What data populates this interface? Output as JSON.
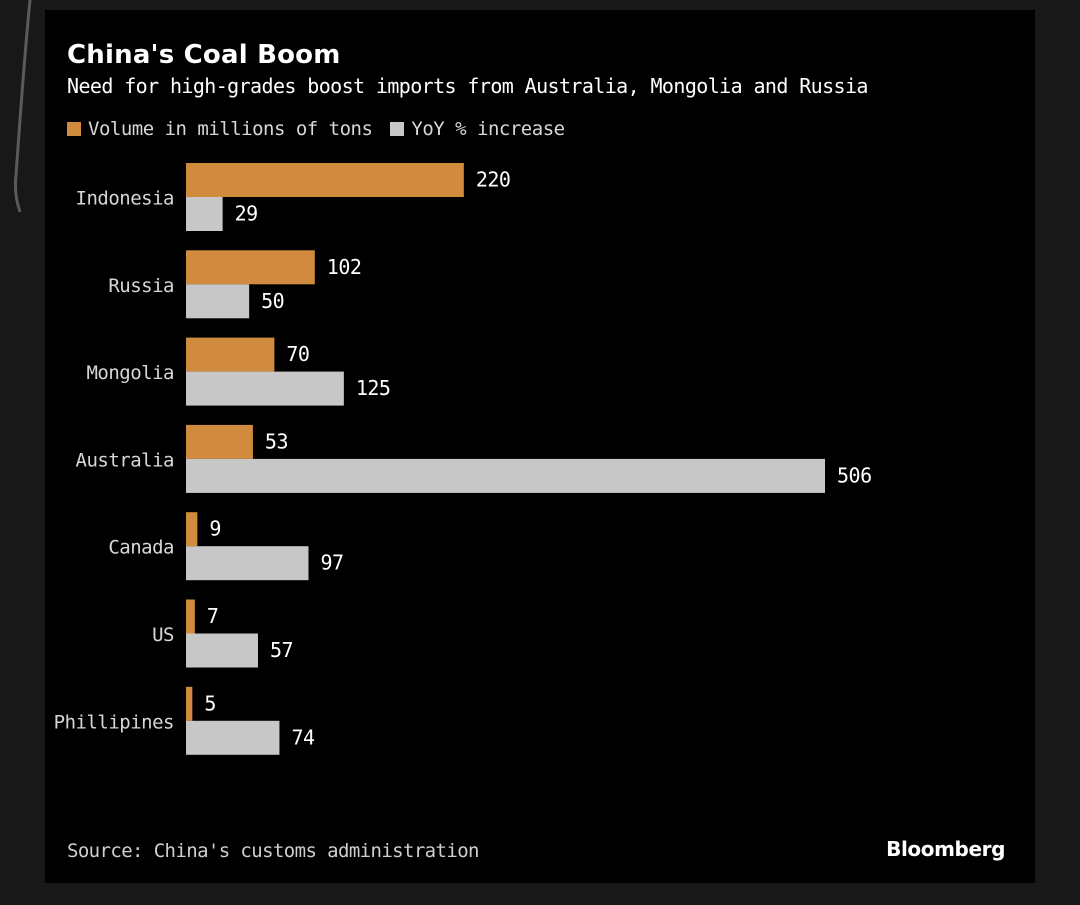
{
  "chart_data": {
    "type": "bar",
    "orientation": "horizontal",
    "title": "China's Coal Boom",
    "subtitle": "Need for high-grades boost imports from Australia, Mongolia and Russia",
    "categories": [
      "Indonesia",
      "Russia",
      "Mongolia",
      "Australia",
      "Canada",
      "US",
      "Phillipines"
    ],
    "series": [
      {
        "name": "Volume in millions of tons",
        "color": "#d08b3e",
        "values": [
          220,
          102,
          70,
          53,
          9,
          7,
          5
        ]
      },
      {
        "name": "YoY % increase",
        "color": "#c7c7c7",
        "values": [
          29,
          50,
          125,
          506,
          97,
          57,
          74
        ]
      }
    ],
    "xlim": [
      0,
      506
    ],
    "source": "Source: China's customs administration",
    "brand": "Bloomberg"
  },
  "colors": {
    "background": "#000000",
    "text": "#ffffff",
    "axis_text": "#d7d7d7"
  }
}
